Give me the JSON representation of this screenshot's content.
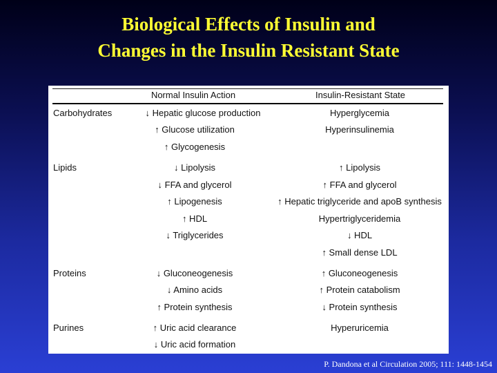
{
  "title": {
    "line1": "Biological Effects of Insulin and",
    "line2": "Changes in the Insulin Resistant State"
  },
  "table": {
    "headers": {
      "normal": "Normal Insulin Action",
      "resistant": "Insulin-Resistant State"
    },
    "categories": {
      "carbohydrates": "Carbohydrates",
      "lipids": "Lipids",
      "proteins": "Proteins",
      "purines": "Purines"
    },
    "normal": [
      "↓ Hepatic glucose production",
      "↑ Glucose utilization",
      "↑ Glycogenesis",
      "↓ Lipolysis",
      "↓ FFA and glycerol",
      "↑ Lipogenesis",
      "↑ HDL",
      "↓ Triglycerides",
      "↓ Gluconeogenesis",
      "↓ Amino acids",
      "↑ Protein synthesis",
      "↑ Uric acid clearance",
      "↓ Uric acid formation"
    ],
    "resistant": [
      "Hyperglycemia",
      "Hyperinsulinemia",
      "↑ Lipolysis",
      "↑ FFA and glycerol",
      "↑ Hepatic triglyceride and apoB synthesis",
      "Hypertriglyceridemia",
      "↓ HDL",
      "↑ Small dense LDL",
      "↑ Gluconeogenesis",
      "↑ Protein catabolism",
      "↓ Protein synthesis",
      "Hyperuricemia"
    ]
  },
  "citation": "P. Dandona et al Circulation  2005; 111: 1448-1454"
}
